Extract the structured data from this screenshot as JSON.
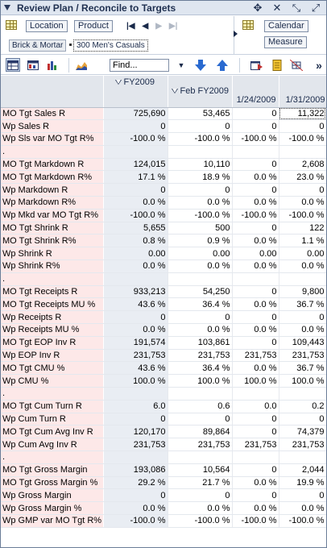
{
  "title": "Review Plan / Reconcile to Targets",
  "dims": {
    "location": "Location",
    "product": "Product",
    "calendar": "Calendar",
    "measure": "Measure",
    "filters": [
      "Brick & Mortar",
      "300 Men's Casuals"
    ]
  },
  "toolbar": {
    "find_placeholder": "Find..."
  },
  "columns": [
    {
      "label": "FY2009",
      "expand": true
    },
    {
      "label": "Feb FY2009",
      "expand": true
    },
    {
      "label": "1/24/2009",
      "expand": false
    },
    {
      "label": "1/31/2009",
      "expand": false
    }
  ],
  "rows": [
    {
      "label": "MO Tgt Sales R",
      "values": [
        "725,690",
        "53,465",
        "0",
        "11,322"
      ]
    },
    {
      "label": "Wp Sales R",
      "values": [
        "0",
        "0",
        "0",
        "0"
      ]
    },
    {
      "label": "Wp Sls var MO Tgt R%",
      "values": [
        "-100.0 %",
        "-100.0 %",
        "-100.0 %",
        "-100.0 %"
      ]
    },
    {
      "label": ".",
      "values": [
        "",
        "",
        "",
        ""
      ]
    },
    {
      "label": "MO Tgt Markdown R",
      "values": [
        "124,015",
        "10,110",
        "0",
        "2,608"
      ]
    },
    {
      "label": "MO Tgt Markdown R%",
      "values": [
        "17.1 %",
        "18.9 %",
        "0.0 %",
        "23.0 %"
      ]
    },
    {
      "label": "Wp Markdown R",
      "values": [
        "0",
        "0",
        "0",
        "0"
      ]
    },
    {
      "label": "Wp Markdown R%",
      "values": [
        "0.0 %",
        "0.0 %",
        "0.0 %",
        "0.0 %"
      ]
    },
    {
      "label": "Wp Mkd var MO Tgt R%",
      "values": [
        "-100.0 %",
        "-100.0 %",
        "-100.0 %",
        "-100.0 %"
      ]
    },
    {
      "label": "MO Tgt Shrink R",
      "values": [
        "5,655",
        "500",
        "0",
        "122"
      ]
    },
    {
      "label": "MO Tgt Shrink R%",
      "values": [
        "0.8 %",
        "0.9 %",
        "0.0 %",
        "1.1 %"
      ]
    },
    {
      "label": "Wp Shrink R",
      "values": [
        "0.00",
        "0.00",
        "0.00",
        "0.00"
      ]
    },
    {
      "label": "Wp Shrink R%",
      "values": [
        "0.0 %",
        "0.0 %",
        "0.0 %",
        "0.0 %"
      ]
    },
    {
      "label": ".",
      "values": [
        "",
        "",
        "",
        ""
      ]
    },
    {
      "label": "MO Tgt Receipts R",
      "values": [
        "933,213",
        "54,250",
        "0",
        "9,800"
      ]
    },
    {
      "label": "MO Tgt Receipts MU %",
      "values": [
        "43.6 %",
        "36.4 %",
        "0.0 %",
        "36.7 %"
      ]
    },
    {
      "label": "Wp Receipts R",
      "values": [
        "0",
        "0",
        "0",
        "0"
      ]
    },
    {
      "label": "Wp Receipts MU %",
      "values": [
        "0.0 %",
        "0.0 %",
        "0.0 %",
        "0.0 %"
      ]
    },
    {
      "label": "MO Tgt EOP Inv R",
      "values": [
        "191,574",
        "103,861",
        "0",
        "109,443"
      ]
    },
    {
      "label": "Wp EOP Inv R",
      "values": [
        "231,753",
        "231,753",
        "231,753",
        "231,753"
      ]
    },
    {
      "label": "MO Tgt CMU %",
      "values": [
        "43.6 %",
        "36.4 %",
        "0.0 %",
        "36.7 %"
      ]
    },
    {
      "label": "Wp CMU %",
      "values": [
        "100.0 %",
        "100.0 %",
        "100.0 %",
        "100.0 %"
      ]
    },
    {
      "label": ".",
      "values": [
        "",
        "",
        "",
        ""
      ]
    },
    {
      "label": "MO Tgt Cum Turn R",
      "values": [
        "6.0",
        "0.6",
        "0.0",
        "0.2"
      ]
    },
    {
      "label": "Wp Cum Turn R",
      "values": [
        "0",
        "0",
        "0",
        "0"
      ]
    },
    {
      "label": "MO Tgt Cum Avg Inv R",
      "values": [
        "120,170",
        "89,864",
        "0",
        "74,379"
      ]
    },
    {
      "label": "Wp Cum Avg Inv R",
      "values": [
        "231,753",
        "231,753",
        "231,753",
        "231,753"
      ]
    },
    {
      "label": ".",
      "values": [
        "",
        "",
        "",
        ""
      ]
    },
    {
      "label": "MO Tgt Gross Margin",
      "values": [
        "193,086",
        "10,564",
        "0",
        "2,044"
      ]
    },
    {
      "label": "MO Tgt Gross Margin %",
      "values": [
        "29.2 %",
        "21.7 %",
        "0.0 %",
        "19.9 %"
      ]
    },
    {
      "label": "Wp Gross Margin",
      "values": [
        "0",
        "0",
        "0",
        "0"
      ]
    },
    {
      "label": "Wp Gross Margin %",
      "values": [
        "0.0 %",
        "0.0 %",
        "0.0 %",
        "0.0 %"
      ]
    },
    {
      "label": "Wp GMP var MO Tgt R%",
      "values": [
        "-100.0 %",
        "-100.0 %",
        "-100.0 %",
        "-100.0 %"
      ]
    }
  ]
}
